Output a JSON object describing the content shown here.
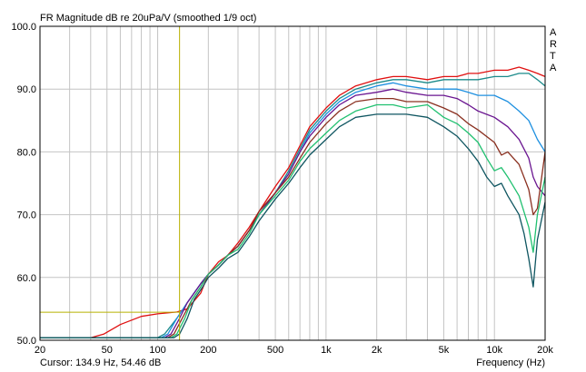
{
  "chart_data": {
    "type": "line",
    "title": "FR Magnitude dB re 20uPa/V (smoothed 1/9 oct)",
    "xlabel": "Frequency (Hz)",
    "ylabel": "",
    "x_scale": "log",
    "xlim": [
      20,
      20000
    ],
    "ylim": [
      50,
      100
    ],
    "grid": true,
    "x_tick_labels": [
      {
        "value": 20,
        "label": "20"
      },
      {
        "value": 50,
        "label": "50"
      },
      {
        "value": 100,
        "label": "100"
      },
      {
        "value": 200,
        "label": "200"
      },
      {
        "value": 500,
        "label": "500"
      },
      {
        "value": 1000,
        "label": "1k"
      },
      {
        "value": 2000,
        "label": "2k"
      },
      {
        "value": 5000,
        "label": "5k"
      },
      {
        "value": 10000,
        "label": "10k"
      },
      {
        "value": 20000,
        "label": "20k"
      }
    ],
    "y_tick_labels": [
      {
        "value": 50,
        "label": "50.0"
      },
      {
        "value": 60,
        "label": "60.0"
      },
      {
        "value": 70,
        "label": "70.0"
      },
      {
        "value": 80,
        "label": "80.0"
      },
      {
        "value": 90,
        "label": "90.0"
      },
      {
        "value": 100,
        "label": "100.0"
      }
    ],
    "cursor": {
      "x": 134.9,
      "y": 54.46,
      "label": "Cursor: 134.9 Hz, 54.46 dB",
      "color": "#b8b000"
    },
    "series": [
      {
        "color": "#e01010",
        "points": [
          [
            20,
            50.4
          ],
          [
            40,
            50.4
          ],
          [
            48,
            51
          ],
          [
            60,
            52.5
          ],
          [
            80,
            53.8
          ],
          [
            100,
            54.2
          ],
          [
            130,
            54.5
          ],
          [
            150,
            55
          ],
          [
            180,
            57.5
          ],
          [
            200,
            60.5
          ],
          [
            230,
            62.5
          ],
          [
            260,
            63.5
          ],
          [
            300,
            65.5
          ],
          [
            350,
            68
          ],
          [
            400,
            70.5
          ],
          [
            500,
            74.5
          ],
          [
            600,
            77.5
          ],
          [
            700,
            81
          ],
          [
            800,
            84
          ],
          [
            1000,
            87
          ],
          [
            1200,
            89
          ],
          [
            1500,
            90.5
          ],
          [
            2000,
            91.5
          ],
          [
            2500,
            92
          ],
          [
            3000,
            92
          ],
          [
            4000,
            91.5
          ],
          [
            5000,
            92
          ],
          [
            6000,
            92
          ],
          [
            7000,
            92.5
          ],
          [
            8000,
            92.5
          ],
          [
            10000,
            93
          ],
          [
            12000,
            93
          ],
          [
            14000,
            93.5
          ],
          [
            16000,
            93
          ],
          [
            18000,
            92.5
          ],
          [
            20000,
            92
          ]
        ]
      },
      {
        "color": "#1a8a8a",
        "points": [
          [
            20,
            50.4
          ],
          [
            100,
            50.4
          ],
          [
            110,
            51
          ],
          [
            130,
            53.5
          ],
          [
            150,
            56
          ],
          [
            180,
            59
          ],
          [
            200,
            60.5
          ],
          [
            230,
            62
          ],
          [
            260,
            63.5
          ],
          [
            300,
            65
          ],
          [
            350,
            67.5
          ],
          [
            400,
            70
          ],
          [
            500,
            73.5
          ],
          [
            600,
            77
          ],
          [
            700,
            80.5
          ],
          [
            800,
            83.5
          ],
          [
            1000,
            86.5
          ],
          [
            1200,
            88.5
          ],
          [
            1500,
            90
          ],
          [
            2000,
            91
          ],
          [
            2500,
            91.5
          ],
          [
            3000,
            91.5
          ],
          [
            4000,
            91
          ],
          [
            5000,
            91.5
          ],
          [
            6000,
            91.5
          ],
          [
            7000,
            91.5
          ],
          [
            8000,
            91.5
          ],
          [
            10000,
            92
          ],
          [
            12000,
            92
          ],
          [
            14000,
            92.5
          ],
          [
            16000,
            92.5
          ],
          [
            18000,
            91.5
          ],
          [
            20000,
            90.5
          ]
        ]
      },
      {
        "color": "#1e90e0",
        "points": [
          [
            20,
            50.4
          ],
          [
            105,
            50.4
          ],
          [
            115,
            51
          ],
          [
            130,
            53.5
          ],
          [
            150,
            56
          ],
          [
            180,
            59
          ],
          [
            200,
            60.5
          ],
          [
            230,
            62
          ],
          [
            260,
            63.5
          ],
          [
            300,
            65
          ],
          [
            350,
            67.5
          ],
          [
            400,
            70
          ],
          [
            500,
            73.5
          ],
          [
            600,
            76.5
          ],
          [
            700,
            80
          ],
          [
            800,
            83
          ],
          [
            1000,
            86
          ],
          [
            1200,
            88
          ],
          [
            1500,
            89.5
          ],
          [
            2000,
            90.5
          ],
          [
            2500,
            91
          ],
          [
            3000,
            90.5
          ],
          [
            4000,
            90
          ],
          [
            5000,
            90
          ],
          [
            6000,
            90
          ],
          [
            7000,
            89.5
          ],
          [
            8000,
            89
          ],
          [
            10000,
            89
          ],
          [
            12000,
            88
          ],
          [
            14000,
            86.5
          ],
          [
            16000,
            85
          ],
          [
            18000,
            82
          ],
          [
            20000,
            80
          ]
        ]
      },
      {
        "color": "#6a1590",
        "points": [
          [
            20,
            50.4
          ],
          [
            110,
            50.4
          ],
          [
            120,
            51
          ],
          [
            135,
            53.5
          ],
          [
            150,
            56
          ],
          [
            180,
            59
          ],
          [
            200,
            60.5
          ],
          [
            230,
            62
          ],
          [
            260,
            63.5
          ],
          [
            300,
            65
          ],
          [
            350,
            67.5
          ],
          [
            400,
            70
          ],
          [
            500,
            73.5
          ],
          [
            600,
            76.5
          ],
          [
            700,
            80
          ],
          [
            800,
            82.5
          ],
          [
            1000,
            85.5
          ],
          [
            1200,
            87.5
          ],
          [
            1500,
            89
          ],
          [
            2000,
            89.5
          ],
          [
            2500,
            90
          ],
          [
            3000,
            89.5
          ],
          [
            4000,
            89
          ],
          [
            5000,
            89
          ],
          [
            6000,
            88.5
          ],
          [
            7000,
            87.5
          ],
          [
            8000,
            86.5
          ],
          [
            10000,
            85.5
          ],
          [
            12000,
            84
          ],
          [
            14000,
            82
          ],
          [
            16000,
            79
          ],
          [
            17000,
            76
          ],
          [
            18000,
            74.5
          ],
          [
            20000,
            73
          ]
        ]
      },
      {
        "color": "#8a3020",
        "points": [
          [
            20,
            50.4
          ],
          [
            115,
            50.4
          ],
          [
            125,
            51
          ],
          [
            140,
            53.5
          ],
          [
            160,
            56.5
          ],
          [
            180,
            58.5
          ],
          [
            200,
            60.5
          ],
          [
            230,
            62
          ],
          [
            260,
            63.5
          ],
          [
            300,
            65
          ],
          [
            350,
            67.5
          ],
          [
            400,
            70.5
          ],
          [
            500,
            73.5
          ],
          [
            600,
            76
          ],
          [
            700,
            79
          ],
          [
            800,
            81.5
          ],
          [
            1000,
            84.5
          ],
          [
            1200,
            86.5
          ],
          [
            1500,
            88
          ],
          [
            2000,
            88.5
          ],
          [
            2500,
            88.5
          ],
          [
            3000,
            88
          ],
          [
            4000,
            88
          ],
          [
            5000,
            87
          ],
          [
            6000,
            86
          ],
          [
            7000,
            84.5
          ],
          [
            8000,
            83.5
          ],
          [
            10000,
            81.5
          ],
          [
            11000,
            79.5
          ],
          [
            12000,
            80
          ],
          [
            14000,
            78
          ],
          [
            16000,
            74
          ],
          [
            17000,
            70
          ],
          [
            18000,
            71
          ],
          [
            20000,
            80
          ]
        ]
      },
      {
        "color": "#20c070",
        "points": [
          [
            20,
            50.4
          ],
          [
            120,
            50.4
          ],
          [
            130,
            51
          ],
          [
            145,
            53.5
          ],
          [
            160,
            56.5
          ],
          [
            180,
            58.5
          ],
          [
            200,
            60.5
          ],
          [
            230,
            62
          ],
          [
            260,
            63.5
          ],
          [
            300,
            64.5
          ],
          [
            350,
            67
          ],
          [
            400,
            70
          ],
          [
            500,
            73
          ],
          [
            600,
            75.5
          ],
          [
            700,
            78.5
          ],
          [
            800,
            80.5
          ],
          [
            1000,
            83
          ],
          [
            1200,
            85
          ],
          [
            1500,
            86.5
          ],
          [
            2000,
            87.5
          ],
          [
            2500,
            87.5
          ],
          [
            3000,
            87
          ],
          [
            4000,
            87.5
          ],
          [
            5000,
            85.5
          ],
          [
            6000,
            84.5
          ],
          [
            7000,
            83
          ],
          [
            8000,
            81.5
          ],
          [
            9000,
            79
          ],
          [
            10000,
            77
          ],
          [
            11000,
            77.5
          ],
          [
            12000,
            76
          ],
          [
            14000,
            73
          ],
          [
            16000,
            68
          ],
          [
            17000,
            64
          ],
          [
            18000,
            70
          ],
          [
            20000,
            76
          ]
        ]
      },
      {
        "color": "#0e5560",
        "points": [
          [
            20,
            50.4
          ],
          [
            125,
            50.4
          ],
          [
            135,
            51
          ],
          [
            150,
            53.5
          ],
          [
            165,
            56.5
          ],
          [
            185,
            58.5
          ],
          [
            200,
            60
          ],
          [
            230,
            61.5
          ],
          [
            260,
            63
          ],
          [
            300,
            64
          ],
          [
            350,
            66.5
          ],
          [
            400,
            69
          ],
          [
            500,
            72.5
          ],
          [
            600,
            75
          ],
          [
            700,
            77.5
          ],
          [
            800,
            79.5
          ],
          [
            1000,
            82
          ],
          [
            1200,
            84
          ],
          [
            1500,
            85.5
          ],
          [
            2000,
            86
          ],
          [
            2500,
            86
          ],
          [
            3000,
            86
          ],
          [
            4000,
            85.5
          ],
          [
            5000,
            84
          ],
          [
            6000,
            82.5
          ],
          [
            7000,
            80.5
          ],
          [
            8000,
            78.5
          ],
          [
            9000,
            76
          ],
          [
            10000,
            74.5
          ],
          [
            11000,
            75
          ],
          [
            12000,
            73
          ],
          [
            14000,
            70
          ],
          [
            15000,
            67
          ],
          [
            16000,
            63
          ],
          [
            17000,
            58.5
          ],
          [
            18000,
            66
          ],
          [
            20000,
            72
          ]
        ]
      }
    ]
  },
  "legend_text": {
    "brand": [
      "A",
      "R",
      "T",
      "A"
    ]
  }
}
